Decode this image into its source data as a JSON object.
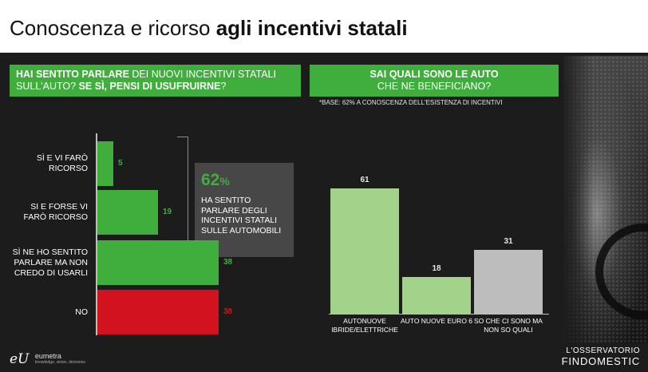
{
  "header": {
    "title_regular": "Conoscenza e ricorso ",
    "title_bold": "agli incentivi statali"
  },
  "left_question": {
    "part1_bold": "HAI SENTITO PARLARE",
    "part2": " DEI NUOVI INCENTIVI STATALI SULL'AUTO? ",
    "part3_bold": "SE SÌ, PENSI DI USUFRUIRNE",
    "part4": "?"
  },
  "right_question": {
    "line1_bold": "SAI QUALI SONO LE AUTO",
    "line2": "CHE NE BENEFICIANO?"
  },
  "base_note": "*BASE: 62% A CONOSCENZA DELL'ESISTENZA DI INCENTIVI",
  "stat": {
    "value": "62",
    "unit": "%",
    "text": "HA SENTITO PARLARE DEGLI INCENTIVI STATALI SULLE AUTOMOBILI"
  },
  "colors": {
    "green": "#3fae3d",
    "red": "#d0131f",
    "light_green": "#a3d28a",
    "gray": "#bdbdbd"
  },
  "chart_data": [
    {
      "type": "bar",
      "orientation": "horizontal",
      "categories": [
        "SÌ E VI FARÒ RICORSO",
        "SI E FORSE VI FARÒ RICORSO",
        "SÌ NE HO SENTITO PARLARE MA NON CREDO DI USARLI",
        "NO"
      ],
      "values": [
        5,
        19,
        38,
        38
      ],
      "colors": [
        "#3fae3d",
        "#3fae3d",
        "#3fae3d",
        "#d0131f"
      ],
      "xlim": [
        0,
        50
      ]
    },
    {
      "type": "bar",
      "orientation": "vertical",
      "categories": [
        "AUTONUOVE IBRIDE/ELETTRICHE",
        "AUTO NUOVE EURO 6",
        "SO CHE CI SONO MA NON SO QUALI"
      ],
      "values": [
        61,
        18,
        31
      ],
      "colors": [
        "#a3d28a",
        "#a3d28a",
        "#bdbdbd"
      ],
      "ylim": [
        0,
        70
      ]
    }
  ],
  "footer": {
    "left_logo_mark": "eU",
    "left_logo_name": "eumetra",
    "left_logo_tagline": "knowledge, vision, decisions",
    "right_logo_line1": "L'OSSERVATORIO",
    "right_logo_line2": "FINDOMESTIC"
  }
}
